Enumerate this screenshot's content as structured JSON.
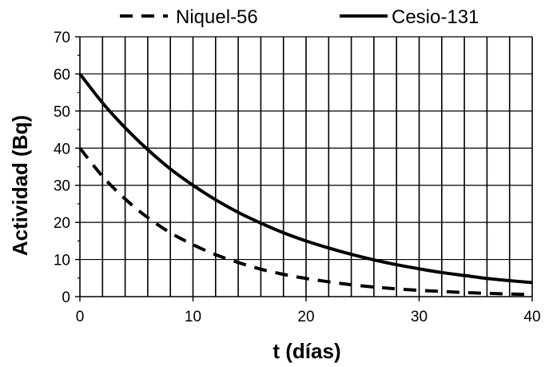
{
  "chart_data": {
    "type": "line",
    "title": "",
    "xlabel": "t (días)",
    "ylabel": "Actividad (Bq)",
    "xlim": [
      0,
      40
    ],
    "ylim": [
      0,
      70
    ],
    "x_ticks": [
      0,
      10,
      20,
      30,
      40
    ],
    "y_ticks": [
      0,
      10,
      20,
      30,
      40,
      50,
      60,
      70
    ],
    "x_gridlines_every": 2,
    "y_gridlines_every": 10,
    "grid": true,
    "legend_position": "top",
    "series": [
      {
        "name": "Niquel-56",
        "style": "dashed",
        "color": "#000000",
        "x": [
          0,
          2,
          4,
          6,
          8,
          10,
          12,
          14,
          16,
          18,
          20,
          22,
          24,
          26,
          28,
          30,
          32,
          34,
          36,
          38,
          40
        ],
        "y": [
          40,
          32.4,
          26.3,
          21.3,
          17.2,
          14.0,
          11.3,
          9.2,
          7.4,
          6.0,
          4.9,
          4.0,
          3.2,
          2.6,
          2.1,
          1.7,
          1.4,
          1.1,
          0.9,
          0.7,
          0.6
        ]
      },
      {
        "name": "Cesio-131",
        "style": "solid",
        "color": "#000000",
        "x": [
          0,
          2,
          4,
          6,
          8,
          10,
          12,
          14,
          16,
          18,
          20,
          22,
          24,
          26,
          28,
          30,
          32,
          34,
          36,
          38,
          40
        ],
        "y": [
          60,
          52.2,
          45.5,
          39.6,
          34.4,
          30.0,
          26.1,
          22.7,
          19.8,
          17.2,
          15.0,
          13.1,
          11.4,
          9.9,
          8.6,
          7.5,
          6.5,
          5.7,
          4.9,
          4.3,
          3.8
        ]
      }
    ]
  }
}
